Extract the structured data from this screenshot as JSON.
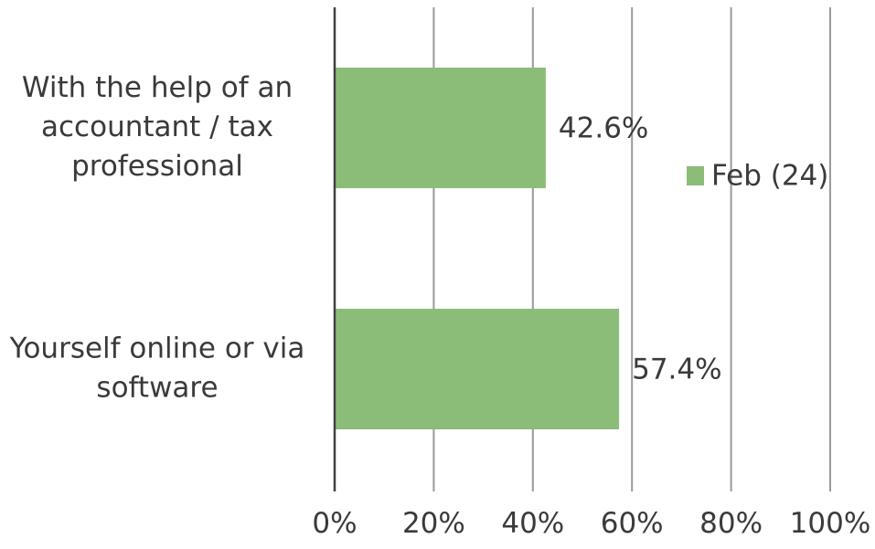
{
  "chart_data": {
    "type": "bar",
    "orientation": "horizontal",
    "categories": [
      [
        "With the help of an",
        "accountant / tax",
        "professional"
      ],
      [
        "Yourself online or via",
        "software"
      ]
    ],
    "series": [
      {
        "name": "Feb (24)",
        "values": [
          42.6,
          57.4
        ],
        "labels": [
          "42.6%",
          "57.4%"
        ],
        "color": "#8bbd78"
      }
    ],
    "xlim": [
      0,
      100
    ],
    "ticks": [
      0,
      20,
      40,
      60,
      80,
      100
    ],
    "tick_labels": [
      "0%",
      "20%",
      "40%",
      "60%",
      "80%",
      "100%"
    ],
    "grid": true,
    "legend_position": "right"
  }
}
